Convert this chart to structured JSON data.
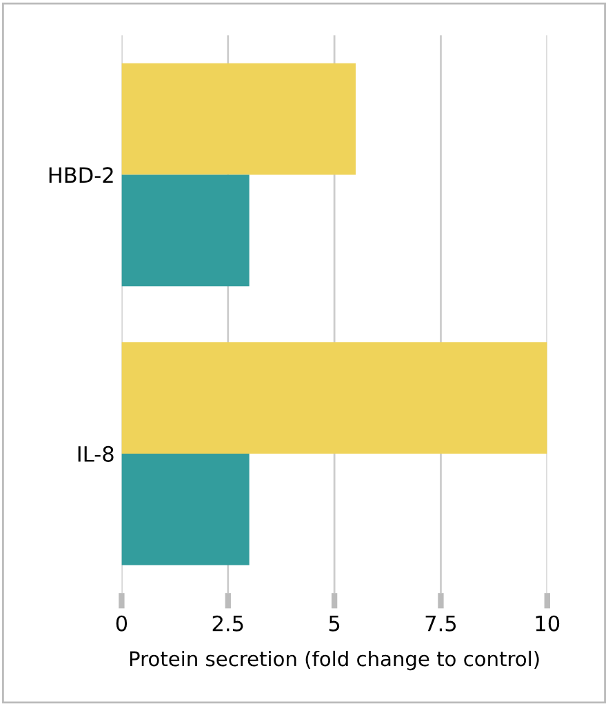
{
  "chart_data": {
    "type": "bar",
    "orientation": "horizontal",
    "categories": [
      "HBD-2",
      "IL-8"
    ],
    "xlabel": "Protein secretion (fold change to control)",
    "series": [
      {
        "color": "#efd35a",
        "values": [
          5.5,
          10
        ]
      },
      {
        "color": "#339d9d",
        "values": [
          3,
          3
        ]
      }
    ],
    "xlim": [
      0,
      10
    ],
    "xticks": [
      0,
      2.5,
      5,
      7.5,
      10
    ],
    "grid": "x",
    "legend": false
  }
}
